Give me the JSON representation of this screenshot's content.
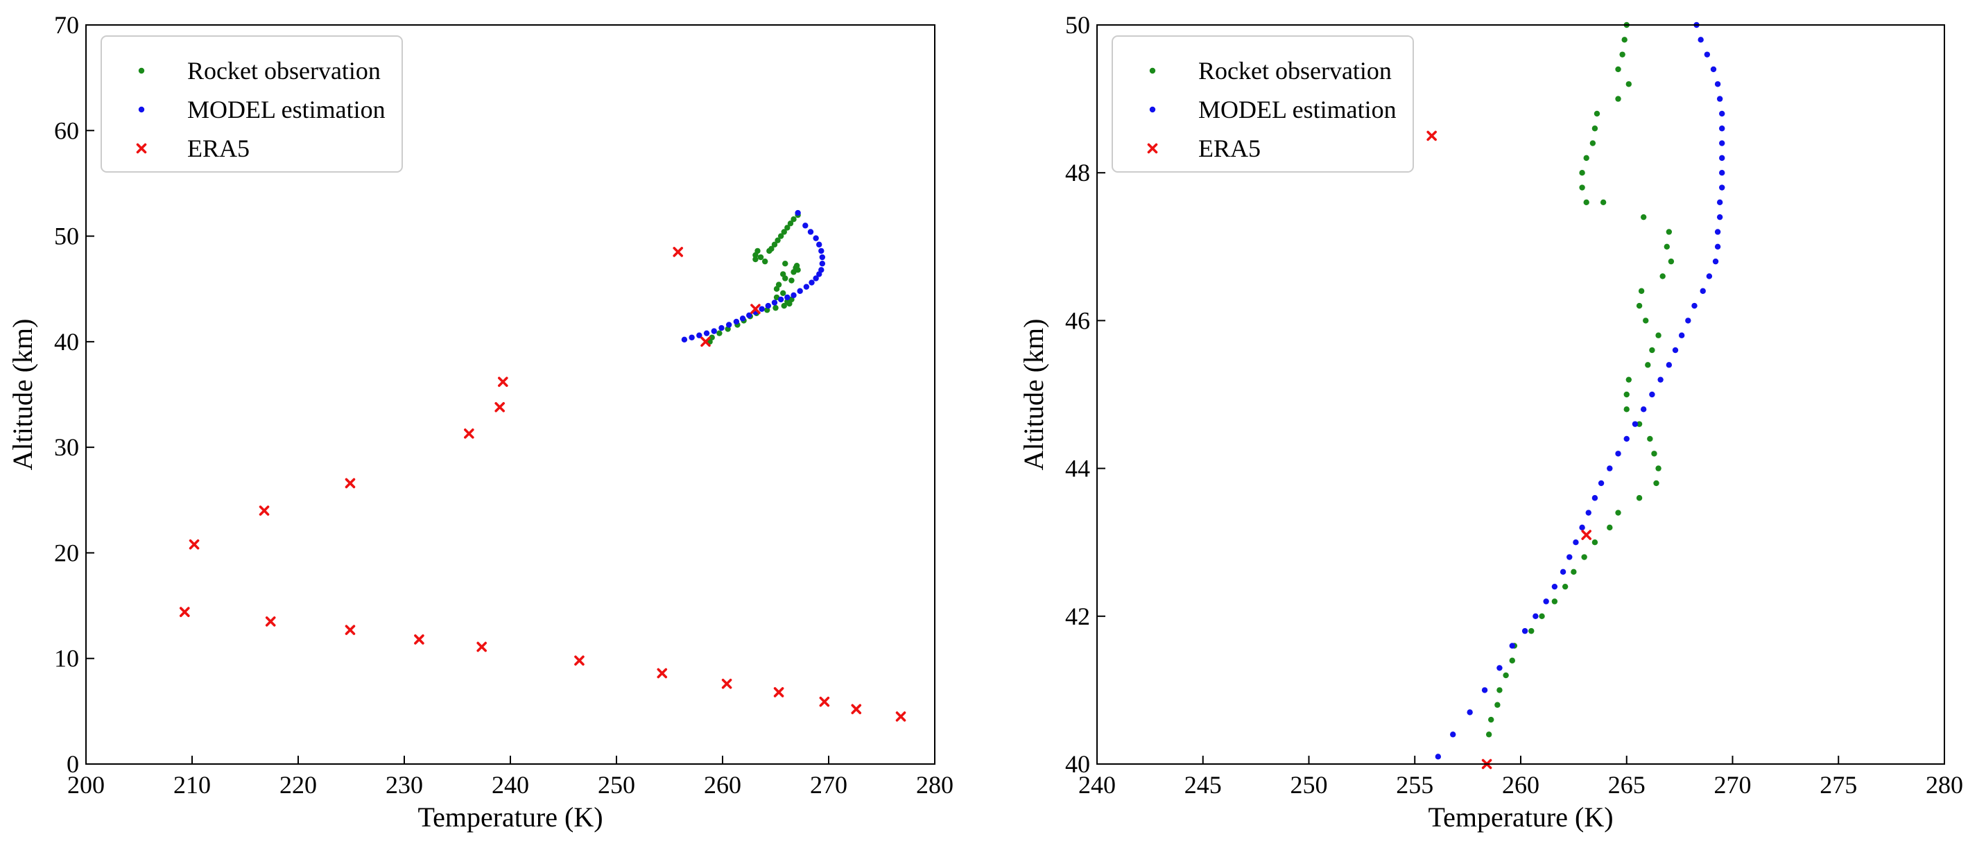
{
  "colors": {
    "rocket": "#1a8a1a",
    "model": "#1010ee",
    "era5": "#ee1111"
  },
  "chart_data": [
    {
      "type": "scatter",
      "xlabel": "Temperature (K)",
      "ylabel": "Altitude (km)",
      "xlim": [
        200,
        280
      ],
      "ylim": [
        0,
        70
      ],
      "xticks": [
        200,
        210,
        220,
        230,
        240,
        250,
        260,
        270,
        280
      ],
      "yticks": [
        0,
        10,
        20,
        30,
        40,
        50,
        60,
        70
      ],
      "legend": {
        "position": "top-left",
        "entries": [
          "Rocket observation",
          "MODEL estimation",
          "ERA5"
        ]
      },
      "series": [
        {
          "name": "Rocket observation",
          "marker": "dot",
          "x": [
            267.1,
            266.7,
            266.4,
            266.1,
            265.8,
            265.5,
            265.2,
            264.9,
            264.6,
            264.4,
            263.3,
            263.1,
            263.6,
            263.1,
            264.0,
            265.9,
            267.0,
            266.9,
            267.1,
            266.7,
            265.7,
            265.9,
            266.5,
            265.3,
            265.1,
            265.7,
            265.1,
            266.5,
            266.1,
            266.3,
            265.8,
            265.0,
            264.2,
            263.2,
            262.6,
            262.0,
            261.4,
            260.5,
            259.7,
            259.0,
            258.8
          ],
          "y": [
            52.0,
            51.6,
            51.2,
            50.8,
            50.4,
            50.0,
            49.6,
            49.2,
            48.8,
            48.6,
            48.6,
            48.2,
            48.0,
            47.8,
            47.6,
            47.4,
            47.2,
            47.0,
            46.8,
            46.6,
            46.4,
            46.0,
            45.8,
            45.4,
            45.0,
            44.6,
            44.2,
            44.0,
            43.8,
            43.6,
            43.4,
            43.2,
            43.0,
            42.7,
            42.4,
            42.0,
            41.6,
            41.2,
            40.8,
            40.4,
            40.0
          ]
        },
        {
          "name": "MODEL estimation",
          "marker": "dot",
          "x": [
            267.1,
            267.8,
            268.3,
            268.8,
            269.1,
            269.3,
            269.4,
            269.4,
            269.3,
            269.1,
            268.8,
            268.4,
            267.9,
            267.3,
            266.7,
            266.1,
            265.5,
            264.9,
            264.3,
            263.7,
            263.1,
            262.5,
            261.9,
            261.3,
            260.6,
            259.9,
            259.2,
            258.5,
            257.8,
            257.1,
            256.4
          ],
          "y": [
            52.2,
            51.0,
            50.4,
            49.8,
            49.2,
            48.6,
            48.0,
            47.4,
            46.8,
            46.4,
            46.0,
            45.6,
            45.2,
            44.8,
            44.4,
            44.2,
            44.0,
            43.7,
            43.4,
            43.1,
            42.8,
            42.5,
            42.2,
            41.9,
            41.6,
            41.3,
            41.0,
            40.8,
            40.6,
            40.4,
            40.2
          ]
        },
        {
          "name": "ERA5",
          "marker": "x",
          "x": [
            276.8,
            272.6,
            269.6,
            265.3,
            260.4,
            254.3,
            246.5,
            237.3,
            231.4,
            224.9,
            217.4,
            209.3,
            210.2,
            216.8,
            224.9,
            236.1,
            239.0,
            239.3,
            258.4,
            263.1,
            255.8
          ],
          "y": [
            4.5,
            5.2,
            5.9,
            6.8,
            7.6,
            8.6,
            9.8,
            11.1,
            11.8,
            12.7,
            13.5,
            14.4,
            20.8,
            24.0,
            26.6,
            31.3,
            33.8,
            36.2,
            40.0,
            43.1,
            48.5
          ]
        }
      ]
    },
    {
      "type": "scatter",
      "xlabel": "Temperature (K)",
      "ylabel": "Altitude (km)",
      "xlim": [
        240,
        280
      ],
      "ylim": [
        40,
        50
      ],
      "xticks": [
        240,
        245,
        250,
        255,
        260,
        265,
        270,
        275,
        280
      ],
      "yticks": [
        40,
        42,
        44,
        46,
        48,
        50
      ],
      "legend": {
        "position": "top-left",
        "entries": [
          "Rocket observation",
          "MODEL estimation",
          "ERA5"
        ]
      },
      "series": [
        {
          "name": "Rocket observation",
          "marker": "dot",
          "x": [
            265.0,
            264.9,
            264.8,
            264.6,
            265.1,
            264.6,
            263.6,
            263.5,
            263.4,
            263.1,
            262.9,
            262.9,
            263.1,
            263.9,
            265.8,
            267.0,
            266.9,
            267.1,
            266.7,
            265.7,
            265.6,
            265.9,
            266.5,
            266.2,
            266.0,
            265.1,
            265.0,
            265.0,
            265.6,
            266.1,
            266.3,
            266.5,
            266.4,
            265.6,
            264.6,
            264.2,
            263.5,
            263.0,
            262.5,
            262.1,
            261.6,
            261.0,
            260.5,
            259.7,
            259.6,
            259.3,
            259.0,
            258.9,
            258.6,
            258.5
          ],
          "y": [
            50.0,
            49.8,
            49.6,
            49.4,
            49.2,
            49.0,
            48.8,
            48.6,
            48.4,
            48.2,
            48.0,
            47.8,
            47.6,
            47.6,
            47.4,
            47.2,
            47.0,
            46.8,
            46.6,
            46.4,
            46.2,
            46.0,
            45.8,
            45.6,
            45.4,
            45.2,
            45.0,
            44.8,
            44.6,
            44.4,
            44.2,
            44.0,
            43.8,
            43.6,
            43.4,
            43.2,
            43.0,
            42.8,
            42.6,
            42.4,
            42.2,
            42.0,
            41.8,
            41.6,
            41.4,
            41.2,
            41.0,
            40.8,
            40.6,
            40.4
          ]
        },
        {
          "name": "MODEL estimation",
          "marker": "dot",
          "x": [
            268.3,
            268.5,
            268.8,
            269.1,
            269.3,
            269.4,
            269.5,
            269.5,
            269.5,
            269.5,
            269.5,
            269.5,
            269.4,
            269.4,
            269.3,
            269.3,
            269.2,
            268.9,
            268.6,
            268.2,
            267.9,
            267.6,
            267.3,
            267.0,
            266.6,
            266.2,
            265.8,
            265.4,
            265.0,
            264.6,
            264.2,
            263.8,
            263.5,
            263.2,
            262.9,
            262.6,
            262.3,
            262.0,
            261.6,
            261.2,
            260.7,
            260.2,
            259.6,
            259.0,
            258.3,
            257.6,
            256.8,
            256.1
          ],
          "y": [
            50.0,
            49.8,
            49.6,
            49.4,
            49.2,
            49.0,
            48.8,
            48.6,
            48.4,
            48.2,
            48.0,
            47.8,
            47.6,
            47.4,
            47.2,
            47.0,
            46.8,
            46.6,
            46.4,
            46.2,
            46.0,
            45.8,
            45.6,
            45.4,
            45.2,
            45.0,
            44.8,
            44.6,
            44.4,
            44.2,
            44.0,
            43.8,
            43.6,
            43.4,
            43.2,
            43.0,
            42.8,
            42.6,
            42.4,
            42.2,
            42.0,
            41.8,
            41.6,
            41.3,
            41.0,
            40.7,
            40.4,
            40.1
          ]
        },
        {
          "name": "ERA5",
          "marker": "x",
          "x": [
            258.4,
            263.1,
            255.8
          ],
          "y": [
            40.0,
            43.1,
            48.5
          ]
        }
      ]
    }
  ]
}
